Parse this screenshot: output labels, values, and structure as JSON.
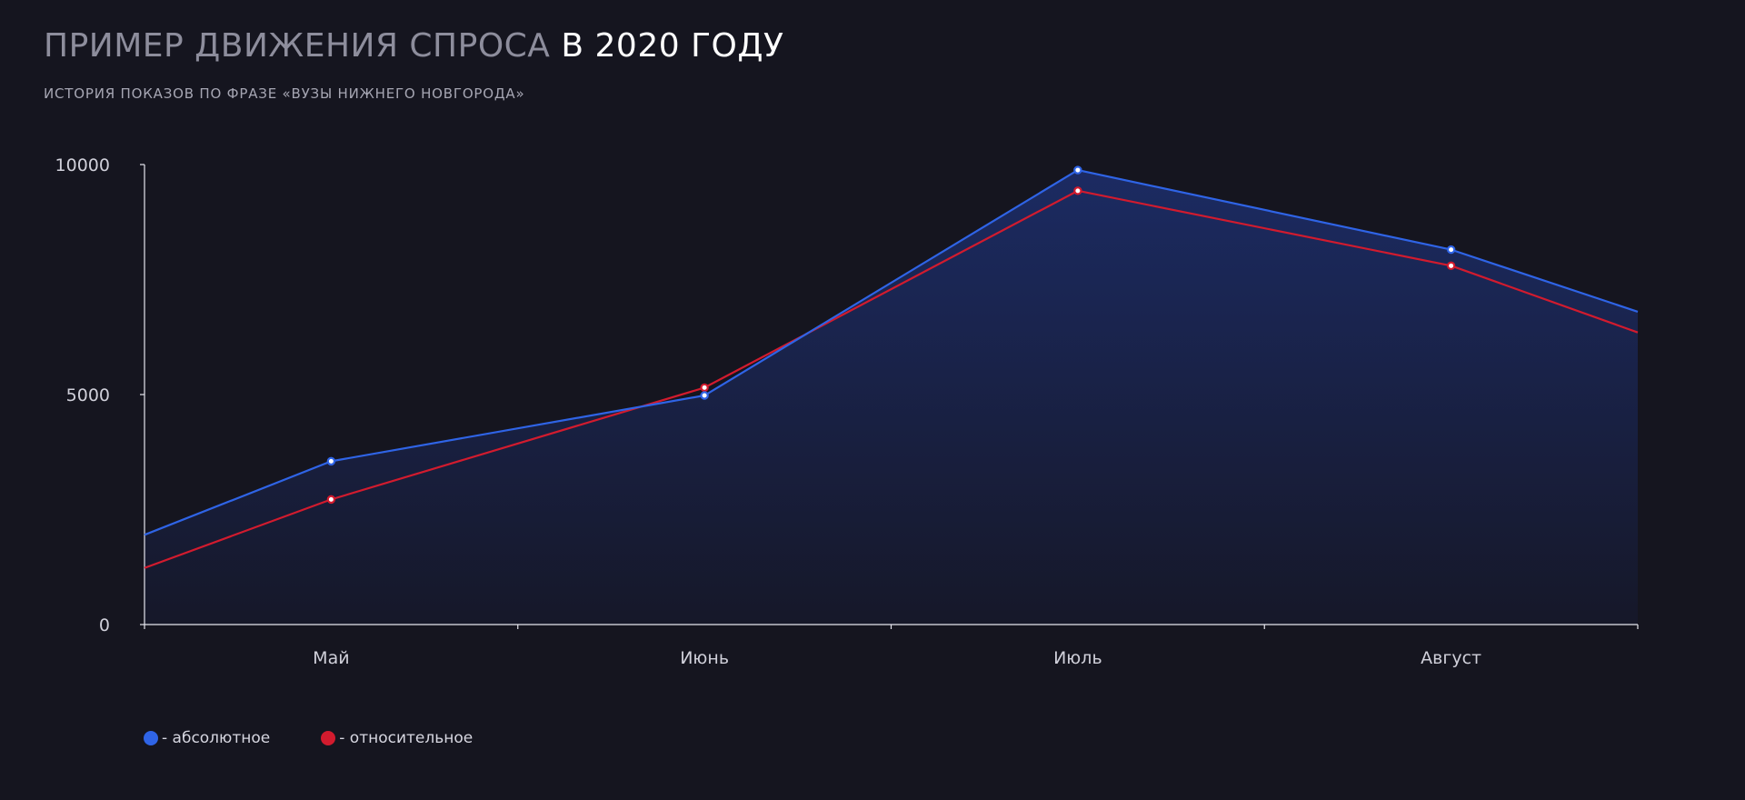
{
  "header": {
    "title_part1": "ПРИМЕР ДВИЖЕНИЯ СПРОСА",
    "title_part2": "В 2020 ГОДУ",
    "subtitle": "ИСТОРИЯ ПОКАЗОВ ПО ФРАЗЕ «ВУЗЫ НИЖНЕГО НОВГОРОДА»"
  },
  "legend": {
    "items": [
      {
        "label": "- абсолютное",
        "color": "#2f64e6"
      },
      {
        "label": "- относительное",
        "color": "#d21b2e"
      }
    ]
  },
  "chart_data": {
    "type": "area",
    "title": "ПРИМЕР ДВИЖЕНИЯ СПРОСА В 2020 ГОДУ",
    "subtitle": "ИСТОРИЯ ПОКАЗОВ ПО ФРАЗЕ «ВУЗЫ НИЖНЕГО НОВГОРОДА»",
    "xlabel": "",
    "ylabel": "",
    "categories": [
      "Май",
      "Июнь",
      "Июль",
      "Август"
    ],
    "x_range": [
      0,
      4
    ],
    "ylim": [
      0,
      10000
    ],
    "yticks": [
      0,
      5000,
      10000
    ],
    "grid": false,
    "legend_position": "bottom-left",
    "series": [
      {
        "name": "- абсолютное",
        "color": "#2f64e6",
        "points": [
          [
            0,
            1950
          ],
          [
            0.5,
            3550
          ],
          [
            1.5,
            4980
          ],
          [
            2.5,
            9880
          ],
          [
            3.5,
            8150
          ],
          [
            4,
            6800
          ]
        ],
        "markers": [
          1,
          2,
          3,
          4
        ]
      },
      {
        "name": "- относительное",
        "color": "#d21b2e",
        "points": [
          [
            0,
            1230
          ],
          [
            0.5,
            2720
          ],
          [
            1.5,
            5150
          ],
          [
            2.5,
            9430
          ],
          [
            3.5,
            7800
          ],
          [
            4,
            6350
          ]
        ],
        "markers": [
          1,
          2,
          3,
          4
        ]
      }
    ]
  }
}
